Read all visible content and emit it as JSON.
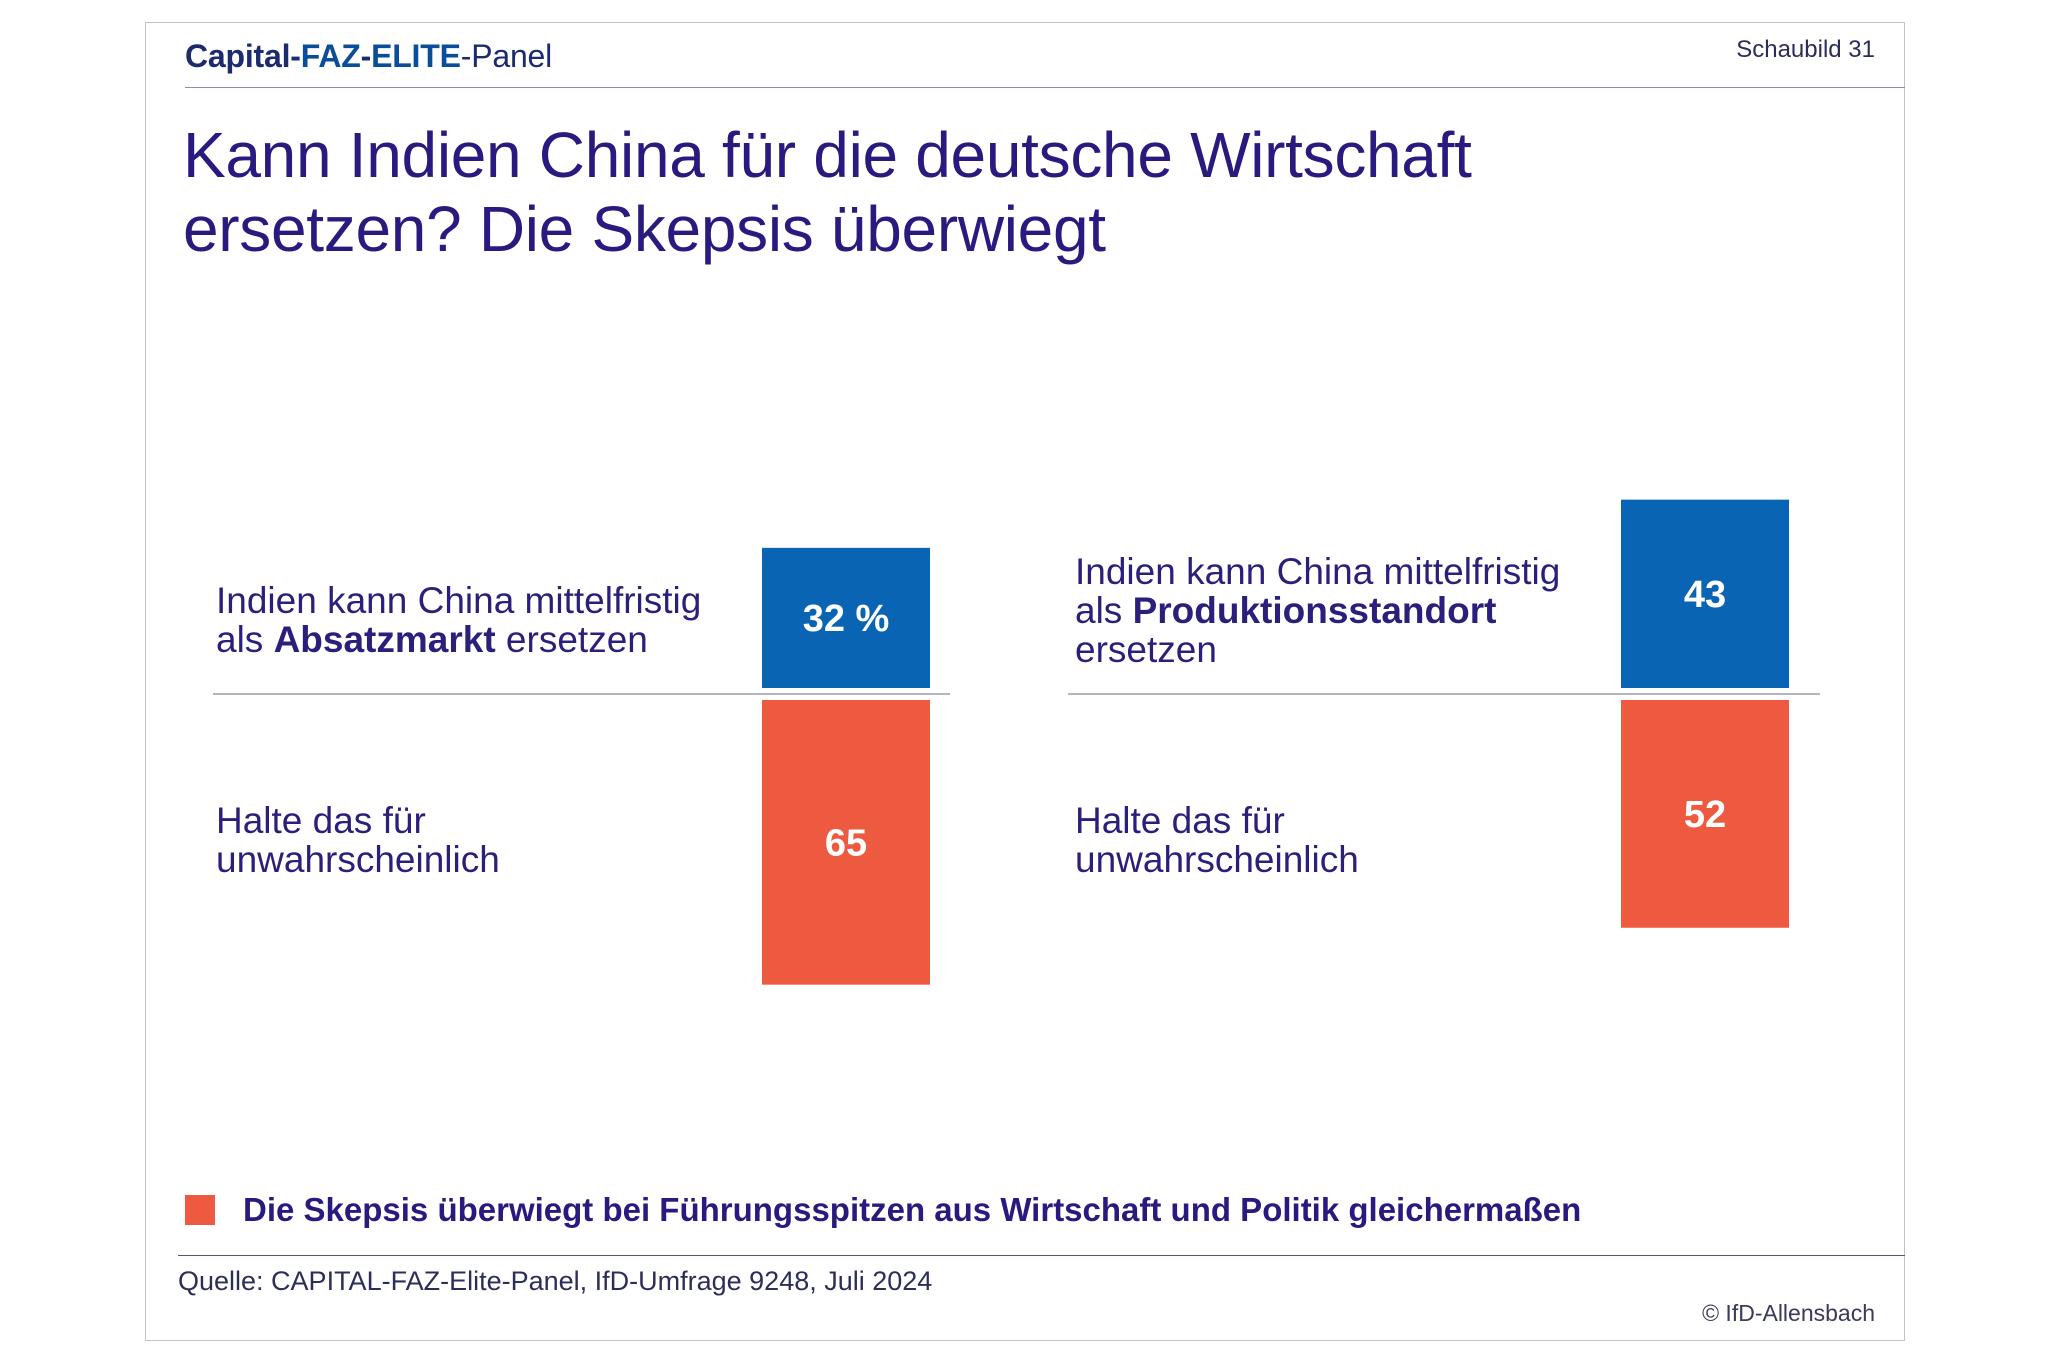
{
  "header": {
    "brand_capital": "Capital-",
    "brand_faz": "FAZ",
    "brand_dash": "-",
    "brand_elite": "ELITE",
    "brand_panel": "-Panel",
    "figure_label": "Schaubild 31"
  },
  "title_line1": "Kann Indien China für die deutsche Wirtschaft",
  "title_line2": "ersetzen? Die Skepsis überwiegt",
  "colors": {
    "positive": "#0a64b4",
    "negative": "#ee5a40",
    "text": "#281a7e",
    "axis": "#9a9cab"
  },
  "chart_data": [
    {
      "type": "bar",
      "categories": [
        "Indien kann China mittelfristig als Absatzmarkt ersetzen",
        "Halte das für unwahrscheinlich"
      ],
      "values": [
        32,
        65
      ],
      "value_labels": [
        "32 %",
        "65"
      ],
      "unit": "%"
    },
    {
      "type": "bar",
      "categories": [
        "Indien kann China mittelfristig als Produktionsstandort ersetzen",
        "Halte das für unwahrscheinlich"
      ],
      "values": [
        43,
        52
      ],
      "value_labels": [
        "43",
        "52"
      ],
      "unit": "%"
    }
  ],
  "labels": {
    "left_top_l1": "Indien kann China mittelfristig",
    "left_top_l2_pre": "als ",
    "left_top_l2_bold": "Absatzmarkt",
    "left_top_l2_post": " ersetzen",
    "left_bottom_l1": "Halte das für",
    "left_bottom_l2": "unwahrscheinlich",
    "right_top_l1": "Indien kann China mittelfristig",
    "right_top_l2_pre": "als ",
    "right_top_l2_bold": "Produktionsstandort",
    "right_top_l3": "ersetzen",
    "right_bottom_l1": "Halte das für",
    "right_bottom_l2": "unwahrscheinlich"
  },
  "note": "Die Skepsis überwiegt bei Führungsspitzen aus Wirtschaft und Politik gleichermaßen",
  "source": "Quelle: CAPITAL-FAZ-Elite-Panel, IfD-Umfrage 9248, Juli 2024",
  "copyright": "© IfD-Allensbach"
}
